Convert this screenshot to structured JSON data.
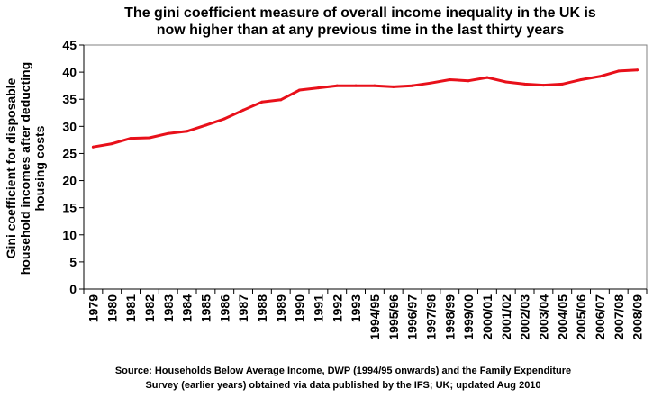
{
  "chart_data": {
    "type": "line",
    "title_lines": [
      "The gini coefficient measure of overall income inequality in the UK is",
      "now higher than at any previous time in the last thirty years"
    ],
    "ylabel_lines": [
      "Gini coefficient for disposable",
      "household incomes after deducting",
      "housing costs"
    ],
    "xlabel": "",
    "source_lines": [
      "Source: Households Below Average Income, DWP (1994/95 onwards) and the Family Expenditure",
      "Survey (earlier years) obtained via data published by the IFS; UK; updated Aug 2010"
    ],
    "categories": [
      "1979",
      "1980",
      "1981",
      "1982",
      "1983",
      "1984",
      "1985",
      "1986",
      "1987",
      "1988",
      "1989",
      "1990",
      "1991",
      "1992",
      "1993",
      "1994/95",
      "1995/96",
      "1996/97",
      "1997/98",
      "1998/99",
      "1999/00",
      "2000/01",
      "2001/02",
      "2002/03",
      "2003/04",
      "2004/05",
      "2005/06",
      "2006/07",
      "2007/08",
      "2008/09"
    ],
    "series": [
      {
        "color": "#e8101a",
        "values": [
          26.2,
          26.8,
          27.8,
          27.9,
          28.7,
          29.1,
          30.2,
          31.4,
          33.0,
          34.5,
          34.9,
          36.7,
          37.1,
          37.5,
          37.5,
          37.5,
          37.3,
          37.5,
          38.0,
          38.6,
          38.4,
          39.0,
          38.2,
          37.8,
          37.6,
          37.8,
          38.6,
          39.2,
          40.2,
          40.4
        ]
      }
    ],
    "ylim": [
      0,
      45
    ],
    "yticks": [
      0,
      5,
      10,
      15,
      20,
      25,
      30,
      35,
      40,
      45
    ],
    "grid": false,
    "legend": "none",
    "plot_border_color": "#808080",
    "axis_color": "#000000"
  }
}
